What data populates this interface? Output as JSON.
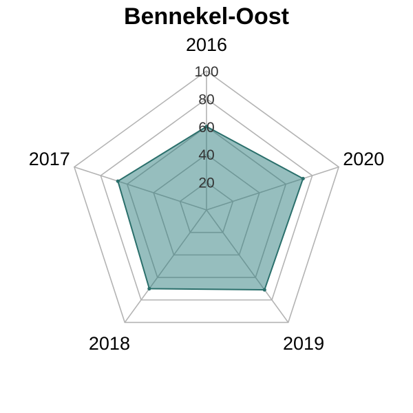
{
  "chart_data": {
    "type": "radar",
    "title": "Bennekel-Oost",
    "categories": [
      "2016",
      "2017",
      "2018",
      "2019",
      "2020"
    ],
    "values": [
      60,
      67,
      70,
      71,
      73
    ],
    "rlim": [
      0,
      100
    ],
    "ticks": [
      20,
      40,
      60,
      80,
      100
    ],
    "tick_labels": [
      "20",
      "40",
      "60",
      "80",
      "100"
    ],
    "grid": true,
    "legend": "none",
    "colors": {
      "fill": "#2d7d7d",
      "line": "#2a6f6b",
      "grid": "#b3b3b3"
    }
  }
}
